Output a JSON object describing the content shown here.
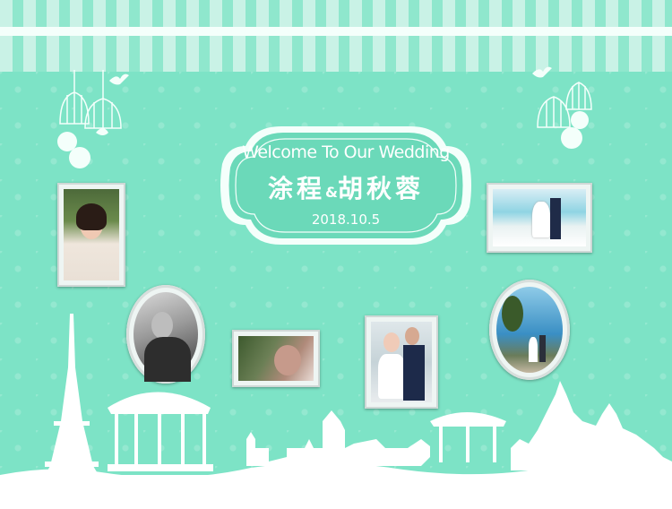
{
  "plaque": {
    "welcome": "Welcome To Our Wedding",
    "groom": "涂程",
    "amp": "&",
    "bride": "胡秋蓉",
    "date": "2018.10.5"
  },
  "colors": {
    "background": "#7de3c6",
    "plaque_fill": "#6bd9b9",
    "frame": "#eef5f3",
    "white": "#ffffff"
  },
  "photos": [
    {
      "name": "woman-portrait-photo",
      "scene": "young woman in white sweater, greenery behind"
    },
    {
      "name": "man-portrait-photo",
      "scene": "black and white portrait of young man"
    },
    {
      "name": "couple-closeup-photo",
      "scene": "couple in close embrace"
    },
    {
      "name": "couple-standing-photo",
      "scene": "bride and groom standing together"
    },
    {
      "name": "beach-couple-photo",
      "scene": "bride and groom on a beach"
    },
    {
      "name": "seaside-walk-photo",
      "scene": "couple by the sea near palm tree"
    }
  ]
}
